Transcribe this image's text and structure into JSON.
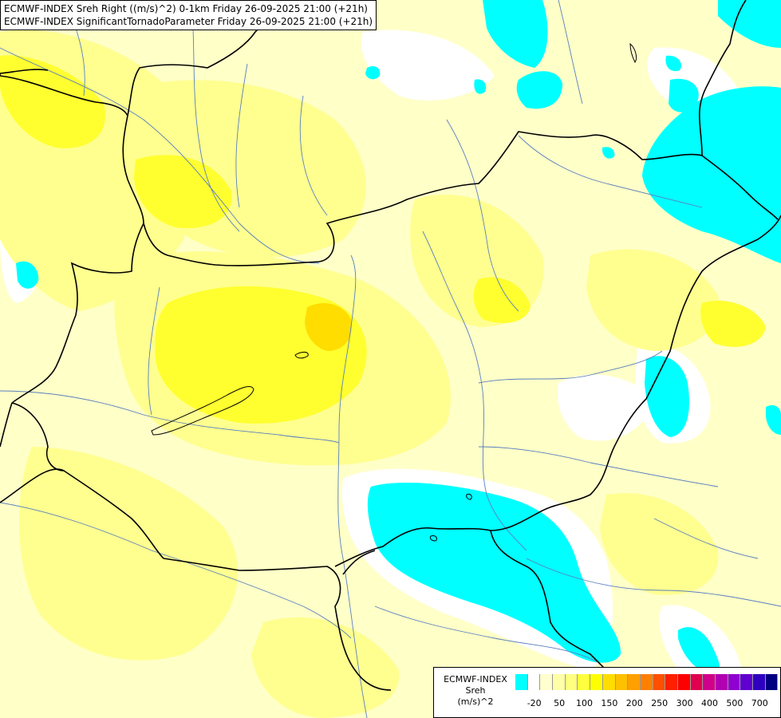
{
  "title": {
    "line1": "ECMWF-INDEX Sreh Right ((m/s)^2) 0-1km Friday 26-09-2025 21:00 (+21h)",
    "line2": "ECMWF-INDEX SignificantTornadoParameter Friday 26-09-2025 21:00 (+21h)"
  },
  "legend": {
    "line1": "ECMWF-INDEX",
    "line2": "Sreh",
    "line3": "(m/s)^2",
    "colors": [
      "#00ffff",
      "#ffffff",
      "#ffffd0",
      "#ffffa8",
      "#ffff80",
      "#ffff40",
      "#ffff00",
      "#ffdd00",
      "#ffc000",
      "#ffa000",
      "#ff8000",
      "#ff5000",
      "#ff2000",
      "#ff0000",
      "#e00050",
      "#d0008a",
      "#b000b0",
      "#9000d0",
      "#6000d0",
      "#3000c0",
      "#000080"
    ],
    "ticks": [
      "-20",
      "50",
      "100",
      "150",
      "200",
      "250",
      "300",
      "400",
      "500",
      "700"
    ]
  },
  "colors": {
    "field_base": "#ffffc8",
    "field_mid": "#ffff90",
    "field_high": "#ffff30",
    "field_peak": "#ffdd00",
    "negative": "#00ffff",
    "neutral": "#ffffff",
    "border": "#000000",
    "river": "#5a7fbf"
  }
}
